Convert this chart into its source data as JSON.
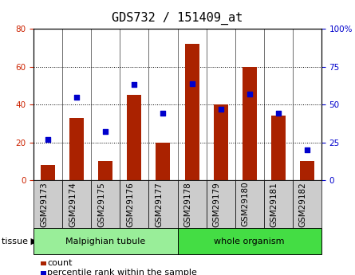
{
  "title": "GDS732 / 151409_at",
  "categories": [
    "GSM29173",
    "GSM29174",
    "GSM29175",
    "GSM29176",
    "GSM29177",
    "GSM29178",
    "GSM29179",
    "GSM29180",
    "GSM29181",
    "GSM29182"
  ],
  "count": [
    8,
    33,
    10,
    45,
    20,
    72,
    40,
    60,
    34,
    10
  ],
  "percentile": [
    27,
    55,
    32,
    63,
    44,
    64,
    47,
    57,
    44,
    20
  ],
  "bar_color": "#aa2200",
  "dot_color": "#0000cc",
  "left_ylim": [
    0,
    80
  ],
  "right_ylim": [
    0,
    100
  ],
  "left_yticks": [
    0,
    20,
    40,
    60,
    80
  ],
  "right_yticks": [
    0,
    25,
    50,
    75,
    100
  ],
  "right_yticklabels": [
    "0",
    "25",
    "50",
    "75",
    "100%"
  ],
  "tissue_groups": [
    {
      "label": "Malpighian tubule",
      "indices": [
        0,
        1,
        2,
        3,
        4
      ],
      "color": "#99ee99"
    },
    {
      "label": "whole organism",
      "indices": [
        5,
        6,
        7,
        8,
        9
      ],
      "color": "#44dd44"
    }
  ],
  "tissue_label": "tissue",
  "legend_count_label": "count",
  "legend_pct_label": "percentile rank within the sample",
  "title_fontsize": 11,
  "tick_fontsize": 7.5,
  "axis_label_color_left": "#cc2200",
  "axis_label_color_right": "#0000cc",
  "xticklabel_bg": "#dddddd",
  "plot_bg": "#ffffff"
}
